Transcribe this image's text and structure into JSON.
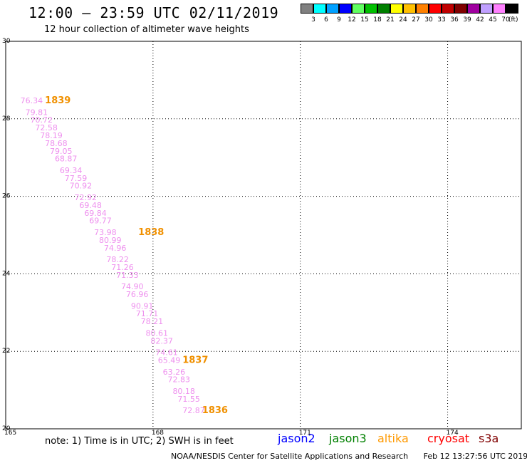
{
  "header": {
    "title": "12:00 – 23:59 UTC 02/11/2019",
    "subtitle": "12 hour collection of altimeter wave heights"
  },
  "legend": {
    "colors": [
      "#808080",
      "#00ffff",
      "#00a0ff",
      "#0000ff",
      "#60ff60",
      "#00c000",
      "#008000",
      "#ffff00",
      "#ffc000",
      "#ff8000",
      "#ff0000",
      "#c00000",
      "#800000",
      "#a000a0",
      "#c0a0ff",
      "#ff80ff",
      "#000000"
    ],
    "labels": [
      "3",
      "6",
      "9",
      "12",
      "15",
      "18",
      "21",
      "24",
      "27",
      "30",
      "33",
      "36",
      "39",
      "42",
      "45",
      "70"
    ],
    "unit": "(ft)"
  },
  "chart_data": {
    "type": "scatter",
    "title": "",
    "xlabel": "",
    "ylabel": "",
    "xlim": [
      165,
      175.5
    ],
    "ylim": [
      20,
      30
    ],
    "x_ticks": [
      "165",
      "168",
      "171",
      "174",
      "177"
    ],
    "y_ticks": [
      "20",
      "22",
      "24",
      "26",
      "28",
      "30"
    ],
    "grid": true,
    "series": [
      {
        "name": "s3a",
        "color": "#ee90ee",
        "points": [
          {
            "x": 165.3,
            "y": 28.4,
            "label": "76.34"
          },
          {
            "x": 165.4,
            "y": 28.1,
            "label": "79.81"
          },
          {
            "x": 165.5,
            "y": 27.9,
            "label": "70.72"
          },
          {
            "x": 165.6,
            "y": 27.7,
            "label": "72.58"
          },
          {
            "x": 165.7,
            "y": 27.5,
            "label": "78.19"
          },
          {
            "x": 165.8,
            "y": 27.3,
            "label": "78.68"
          },
          {
            "x": 165.9,
            "y": 27.1,
            "label": "79.05"
          },
          {
            "x": 166.0,
            "y": 26.9,
            "label": "68.87"
          },
          {
            "x": 166.1,
            "y": 26.6,
            "label": "69.34"
          },
          {
            "x": 166.2,
            "y": 26.4,
            "label": "77.59"
          },
          {
            "x": 166.3,
            "y": 26.2,
            "label": "70.92"
          },
          {
            "x": 166.4,
            "y": 25.9,
            "label": "72.92"
          },
          {
            "x": 166.5,
            "y": 25.7,
            "label": "69.48"
          },
          {
            "x": 166.6,
            "y": 25.5,
            "label": "69.84"
          },
          {
            "x": 166.7,
            "y": 25.3,
            "label": "69.77"
          },
          {
            "x": 166.8,
            "y": 25.0,
            "label": "73.98"
          },
          {
            "x": 166.9,
            "y": 24.8,
            "label": "80.99"
          },
          {
            "x": 167.0,
            "y": 24.6,
            "label": "74.96"
          },
          {
            "x": 167.05,
            "y": 24.3,
            "label": "78.22"
          },
          {
            "x": 167.15,
            "y": 24.1,
            "label": "71.26"
          },
          {
            "x": 167.25,
            "y": 23.9,
            "label": "71.33"
          },
          {
            "x": 167.35,
            "y": 23.6,
            "label": "74.90"
          },
          {
            "x": 167.45,
            "y": 23.4,
            "label": "76.96"
          },
          {
            "x": 167.55,
            "y": 23.1,
            "label": "90.91"
          },
          {
            "x": 167.65,
            "y": 22.9,
            "label": "71.71"
          },
          {
            "x": 167.75,
            "y": 22.7,
            "label": "78.21"
          },
          {
            "x": 167.85,
            "y": 22.4,
            "label": "80.61"
          },
          {
            "x": 167.95,
            "y": 22.2,
            "label": "82.37"
          },
          {
            "x": 168.05,
            "y": 21.9,
            "label": "74.61"
          },
          {
            "x": 168.1,
            "y": 21.7,
            "label": "65.49"
          },
          {
            "x": 168.2,
            "y": 21.4,
            "label": "63.26"
          },
          {
            "x": 168.3,
            "y": 21.2,
            "label": "72.83"
          },
          {
            "x": 168.4,
            "y": 20.9,
            "label": "80.18"
          },
          {
            "x": 168.5,
            "y": 20.7,
            "label": "71.55"
          },
          {
            "x": 168.6,
            "y": 20.4,
            "label": "72.87"
          }
        ]
      }
    ],
    "time_labels": [
      {
        "x": 165.8,
        "y": 28.4,
        "label": "1839"
      },
      {
        "x": 167.7,
        "y": 25.0,
        "label": "1838"
      },
      {
        "x": 168.6,
        "y": 21.7,
        "label": "1837"
      },
      {
        "x": 169.0,
        "y": 20.4,
        "label": "1836"
      }
    ],
    "time_label_color": "#f09000"
  },
  "footer": {
    "note": "note: 1) Time is in UTC; 2) SWH is in feet",
    "satellites": [
      {
        "name": "jason2",
        "color": "#0000ff"
      },
      {
        "name": "jason3",
        "color": "#008000"
      },
      {
        "name": "altika",
        "color": "#ff9900"
      },
      {
        "name": "cryosat",
        "color": "#ff0000"
      },
      {
        "name": "s3a",
        "color": "#800000"
      }
    ],
    "credit": "NOAA/NESDIS Center for Satellite Applications and Research",
    "timestamp": "Feb 12 13:27:56 UTC 2019"
  }
}
